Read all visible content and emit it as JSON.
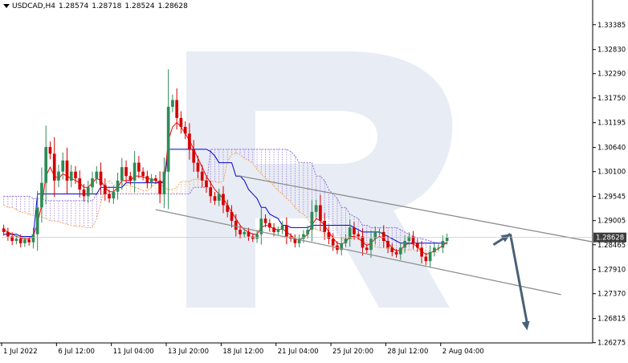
{
  "header": {
    "symbol": "USDCAD,H4",
    "open": "1.28574",
    "high": "1.28718",
    "low": "1.28524",
    "close": "1.28628"
  },
  "chart_data": {
    "type": "candlestick",
    "symbol": "USDCAD",
    "timeframe": "H4",
    "ylim": [
      1.2627,
      1.3365
    ],
    "y_ticks": [
      "1.33385",
      "1.32830",
      "1.32290",
      "1.31750",
      "1.31195",
      "1.30640",
      "1.30100",
      "1.29545",
      "1.29005",
      "1.28465",
      "1.27910",
      "1.27370",
      "1.26815",
      "1.26275"
    ],
    "current_price": "1.28628",
    "x_tick_labels": [
      "1 Jul 2022",
      "6 Jul 12:00",
      "11 Jul 04:00",
      "13 Jul 20:00",
      "18 Jul 12:00",
      "21 Jul 04:00",
      "25 Jul 20:00",
      "28 Jul 12:00",
      "2 Aug 04:00"
    ],
    "x_tick_index": [
      0,
      13,
      26,
      39,
      52,
      65,
      78,
      91,
      104
    ],
    "bars_total": 140,
    "close": [
      1.2875,
      1.2865,
      1.2855,
      1.286,
      1.285,
      1.2858,
      1.2852,
      1.287,
      1.293,
      1.2985,
      1.3065,
      1.305,
      1.299,
      1.301,
      1.3035,
      1.299,
      1.301,
      1.2995,
      1.297,
      1.2955,
      1.2975,
      1.2995,
      1.301,
      1.298,
      1.296,
      1.295,
      1.2965,
      1.299,
      1.302,
      1.3,
      1.299,
      1.303,
      1.301,
      1.3,
      1.2985,
      1.2995,
      1.299,
      1.296,
      1.301,
      1.3155,
      1.317,
      1.313,
      1.311,
      1.3095,
      1.306,
      1.303,
      1.301,
      1.299,
      1.2975,
      1.2955,
      1.2945,
      1.296,
      1.2935,
      1.292,
      1.29,
      1.288,
      1.287,
      1.2875,
      1.2865,
      1.286,
      1.287,
      1.2905,
      1.2895,
      1.2885,
      1.2875,
      1.288,
      1.289,
      1.2865,
      1.286,
      1.285,
      1.286,
      1.287,
      1.288,
      1.292,
      1.2935,
      1.29,
      1.2875,
      1.286,
      1.2845,
      1.2835,
      1.285,
      1.286,
      1.2885,
      1.287,
      1.2865,
      1.284,
      1.2835,
      1.286,
      1.2875,
      1.2875,
      1.2855,
      1.284,
      1.283,
      1.2825,
      1.284,
      1.2855,
      1.2865,
      1.285,
      1.284,
      1.282,
      1.281,
      1.283,
      1.284,
      1.284,
      1.2855,
      1.2863
    ],
    "ohlc_note": "Derived from close series; open = previous close.",
    "tenkan": [
      1.288,
      1.2875,
      1.287,
      1.2865,
      1.2862,
      1.286,
      1.286,
      1.2865,
      1.2895,
      1.2935,
      1.3,
      1.302,
      1.3,
      1.2995,
      1.3005,
      1.3,
      1.2995,
      1.299,
      1.2985,
      1.2975,
      1.2975,
      1.2985,
      1.2995,
      1.299,
      1.2975,
      1.2965,
      1.2965,
      1.2975,
      1.299,
      1.299,
      1.299,
      1.3,
      1.3,
      1.2998,
      1.2995,
      1.2993,
      1.299,
      1.2985,
      1.299,
      1.308,
      1.311,
      1.312,
      1.311,
      1.3095,
      1.308,
      1.306,
      1.304,
      1.302,
      1.3,
      1.2985,
      1.297,
      1.296,
      1.295,
      1.2935,
      1.292,
      1.2905,
      1.289,
      1.288,
      1.2875,
      1.287,
      1.287,
      1.2885,
      1.289,
      1.2888,
      1.2882,
      1.288,
      1.2882,
      1.2875,
      1.2868,
      1.286,
      1.2858,
      1.2862,
      1.287,
      1.289,
      1.2905,
      1.29,
      1.289,
      1.2875,
      1.2862,
      1.285,
      1.2848,
      1.2852,
      1.2865,
      1.2865,
      1.2862,
      1.2852,
      1.2845,
      1.285,
      1.286,
      1.2865,
      1.286,
      1.285,
      1.284,
      1.2832,
      1.2835,
      1.2845,
      1.285,
      1.2848,
      1.2842,
      1.2832,
      1.2825,
      1.2828,
      1.2833,
      1.2838,
      1.2845,
      1.2852
    ],
    "kijun": [
      1.287,
      1.287,
      1.287,
      1.287,
      1.2865,
      1.2865,
      1.2865,
      1.2865,
      1.296,
      1.296,
      1.296,
      1.296,
      1.296,
      1.296,
      1.296,
      1.296,
      1.296,
      1.296,
      1.296,
      1.296,
      1.296,
      1.296,
      1.296,
      1.2975,
      1.2975,
      1.2975,
      1.2975,
      1.2975,
      1.2975,
      1.2985,
      1.2985,
      1.2985,
      1.2985,
      1.2985,
      1.2985,
      1.2985,
      1.2985,
      1.2985,
      1.2985,
      1.306,
      1.306,
      1.306,
      1.306,
      1.306,
      1.306,
      1.306,
      1.306,
      1.306,
      1.306,
      1.3055,
      1.3045,
      1.303,
      1.303,
      1.303,
      1.303,
      1.3,
      1.3,
      1.299,
      1.297,
      1.296,
      1.295,
      1.293,
      1.293,
      1.2915,
      1.291,
      1.2905,
      1.289,
      1.289,
      1.2885,
      1.2885,
      1.2885,
      1.2885,
      1.2885,
      1.289,
      1.289,
      1.289,
      1.289,
      1.289,
      1.289,
      1.289,
      1.289,
      1.289,
      1.289,
      1.2885,
      1.288,
      1.2875,
      1.2875,
      1.2875,
      1.2875,
      1.2875,
      1.287,
      1.2865,
      1.286,
      1.2855,
      1.285,
      1.285,
      1.285,
      1.285,
      1.285,
      1.285,
      1.285,
      1.285,
      1.285,
      1.285,
      1.285,
      1.285
    ],
    "cloud": {
      "shift": 26,
      "span_a": [
        1.2935,
        1.293,
        1.293,
        1.2925,
        1.292,
        1.2918,
        1.2915,
        1.2912,
        1.291,
        1.2908,
        1.2905,
        1.29,
        1.29,
        1.2898,
        1.2895,
        1.2892,
        1.289,
        1.2888,
        1.2887,
        1.2886,
        1.2885,
        1.2885,
        1.2905,
        1.294,
        1.298,
        1.299,
        1.298,
        1.2978,
        1.2982,
        1.298,
        1.2978,
        1.2975,
        1.2972,
        1.2968,
        1.2968,
        1.2975,
        1.2985,
        1.2983,
        1.2975,
        1.297,
        1.297,
        1.2975,
        1.2988,
        1.2988,
        1.2988,
        1.2993,
        1.2993,
        1.2992,
        1.299,
        1.2989,
        1.2988,
        1.2985,
        1.2988,
        1.3032,
        1.3048,
        1.3052,
        1.3048,
        1.304,
        1.3035,
        1.3028,
        1.3015,
        1.3005,
        1.2995,
        1.2988,
        1.2978,
        1.2968,
        1.296,
        1.295,
        1.2942,
        1.293,
        1.292,
        1.2915,
        1.2905,
        1.289,
        1.288,
        1.288,
        1.2872,
        1.2868,
        1.2865,
        1.2862,
        1.2862,
        1.286,
        1.286,
        1.286,
        1.286,
        1.2855,
        1.285,
        1.2845,
        1.2842,
        1.284,
        1.284,
        1.2838,
        1.2838,
        1.2835,
        1.2835,
        1.2835,
        1.2835,
        1.2835,
        1.2833,
        1.2833,
        1.2833,
        1.283,
        1.283,
        1.283
      ],
      "span_b": [
        1.2955,
        1.2955,
        1.2955,
        1.2955,
        1.2955,
        1.2955,
        1.2955,
        1.295,
        1.295,
        1.295,
        1.2945,
        1.2945,
        1.2945,
        1.2945,
        1.2945,
        1.2945,
        1.2945,
        1.2945,
        1.2945,
        1.2945,
        1.2945,
        1.2945,
        1.296,
        1.296,
        1.296,
        1.296,
        1.296,
        1.296,
        1.296,
        1.296,
        1.296,
        1.296,
        1.296,
        1.296,
        1.296,
        1.296,
        1.296,
        1.296,
        1.296,
        1.296,
        1.296,
        1.296,
        1.296,
        1.296,
        1.296,
        1.2975,
        1.2975,
        1.2975,
        1.2975,
        1.306,
        1.306,
        1.306,
        1.306,
        1.306,
        1.306,
        1.306,
        1.306,
        1.306,
        1.306,
        1.306,
        1.306,
        1.306,
        1.306,
        1.306,
        1.306,
        1.306,
        1.306,
        1.306,
        1.3055,
        1.3045,
        1.303,
        1.303,
        1.303,
        1.303,
        1.3,
        1.3,
        1.299,
        1.297,
        1.296,
        1.295,
        1.293,
        1.293,
        1.2915,
        1.291,
        1.2905,
        1.289,
        1.289,
        1.2885,
        1.2885,
        1.2885,
        1.2885,
        1.2885,
        1.2885,
        1.2885,
        1.288,
        1.2875,
        1.287,
        1.2865,
        1.2862,
        1.286,
        1.2858,
        1.2855,
        1.2852,
        1.285
      ]
    },
    "channel": {
      "upper": {
        "from": [
          56,
          1.3
        ],
        "to": [
          140,
          1.2852
        ]
      },
      "lower": {
        "from": [
          36,
          1.2925
        ],
        "to": [
          132,
          1.2735
        ]
      }
    },
    "forecast_arrow": [
      [
        116,
        1.28465
      ],
      [
        120,
        1.28705
      ],
      [
        124,
        1.2655
      ]
    ],
    "colors": {
      "bull": "#2e8b57",
      "bear": "#d40000",
      "tenkan": "#ff0000",
      "kijun": "#0000cc",
      "span_a": "#f4a460",
      "span_b": "#9370db",
      "channel": "#8c8c8c",
      "arrow": "#4a6078",
      "watermark": "#e8ecf4",
      "price_label_bg": "#3c3c3c"
    }
  }
}
